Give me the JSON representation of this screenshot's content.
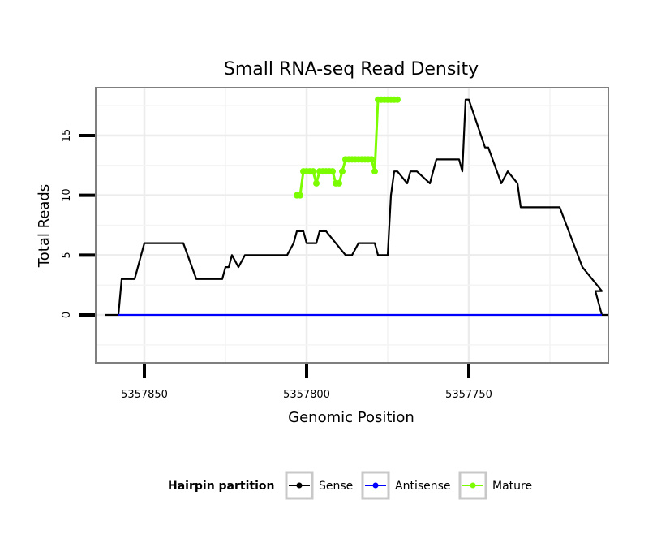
{
  "chart_data": {
    "type": "line",
    "title": "Small RNA-seq Read Density",
    "xlabel": "Genomic Position",
    "ylabel": "Total Reads",
    "x_reversed": true,
    "xlim": [
      5357865,
      5357707
    ],
    "ylim": [
      -4,
      19
    ],
    "x_ticks": [
      5357850,
      5357800,
      5357750
    ],
    "x_tick_labels": [
      "5357850",
      "5357800",
      "5357750"
    ],
    "y_ticks": [
      0,
      5,
      10,
      15
    ],
    "y_tick_labels": [
      "0",
      "5",
      "10",
      "15"
    ],
    "grid": true,
    "legend": {
      "title": "Hairpin partition",
      "position": "bottom",
      "entries": [
        {
          "name": "Sense",
          "color": "#000000"
        },
        {
          "name": "Antisense",
          "color": "#0000ff"
        },
        {
          "name": "Mature",
          "color": "#7cfc00"
        }
      ]
    },
    "series": [
      {
        "name": "Sense",
        "color": "#000000",
        "x": [
          5357862,
          5357858,
          5357857,
          5357853,
          5357851,
          5357850,
          5357838,
          5357834,
          5357826,
          5357825,
          5357824,
          5357823,
          5357821,
          5357819,
          5357816,
          5357811,
          5357806,
          5357804,
          5357803,
          5357801,
          5357800,
          5357799,
          5357797,
          5357796,
          5357794,
          5357788,
          5357786,
          5357784,
          5357781,
          5357779,
          5357778,
          5357776,
          5357775,
          5357774,
          5357773,
          5357772,
          5357769,
          5357768,
          5357766,
          5357762,
          5357761,
          5357760,
          5357757,
          5357753,
          5357752,
          5357751,
          5357750,
          5357745,
          5357744,
          5357740,
          5357738,
          5357735,
          5357734,
          5357722,
          5357715,
          5357709
        ],
        "values": [
          0,
          0,
          3,
          3,
          5,
          6,
          6,
          3,
          3,
          4,
          4,
          5,
          4,
          5,
          5,
          5,
          5,
          6,
          7,
          7,
          6,
          6,
          6,
          7,
          7,
          5,
          5,
          6,
          6,
          6,
          5,
          5,
          5,
          10,
          12,
          12,
          11,
          12,
          12,
          11,
          12,
          13,
          13,
          13,
          12,
          18,
          18,
          14,
          14,
          11,
          12,
          11,
          9,
          9,
          4,
          2
        ],
        "x_tail": [
          5357711,
          5357709,
          5357707
        ],
        "values_tail": [
          2,
          0,
          0
        ]
      },
      {
        "name": "Antisense",
        "color": "#0000ff",
        "x": [
          5357858,
          5357709
        ],
        "values": [
          0,
          0
        ]
      },
      {
        "name": "Mature",
        "color": "#7cfc00",
        "x": [
          5357803,
          5357802,
          5357801,
          5357800,
          5357799,
          5357798,
          5357797,
          5357796,
          5357795,
          5357794,
          5357793,
          5357792,
          5357791,
          5357790,
          5357789,
          5357788,
          5357787,
          5357786,
          5357785,
          5357784,
          5357783,
          5357782,
          5357781,
          5357780,
          5357779,
          5357778,
          5357777,
          5357776,
          5357775,
          5357774,
          5357773,
          5357772
        ],
        "values": [
          10,
          10,
          12,
          12,
          12,
          12,
          11,
          12,
          12,
          12,
          12,
          12,
          11,
          11,
          12,
          13,
          13,
          13,
          13,
          13,
          13,
          13,
          13,
          13,
          12,
          18,
          18,
          18,
          18,
          18,
          18,
          18
        ]
      }
    ]
  }
}
